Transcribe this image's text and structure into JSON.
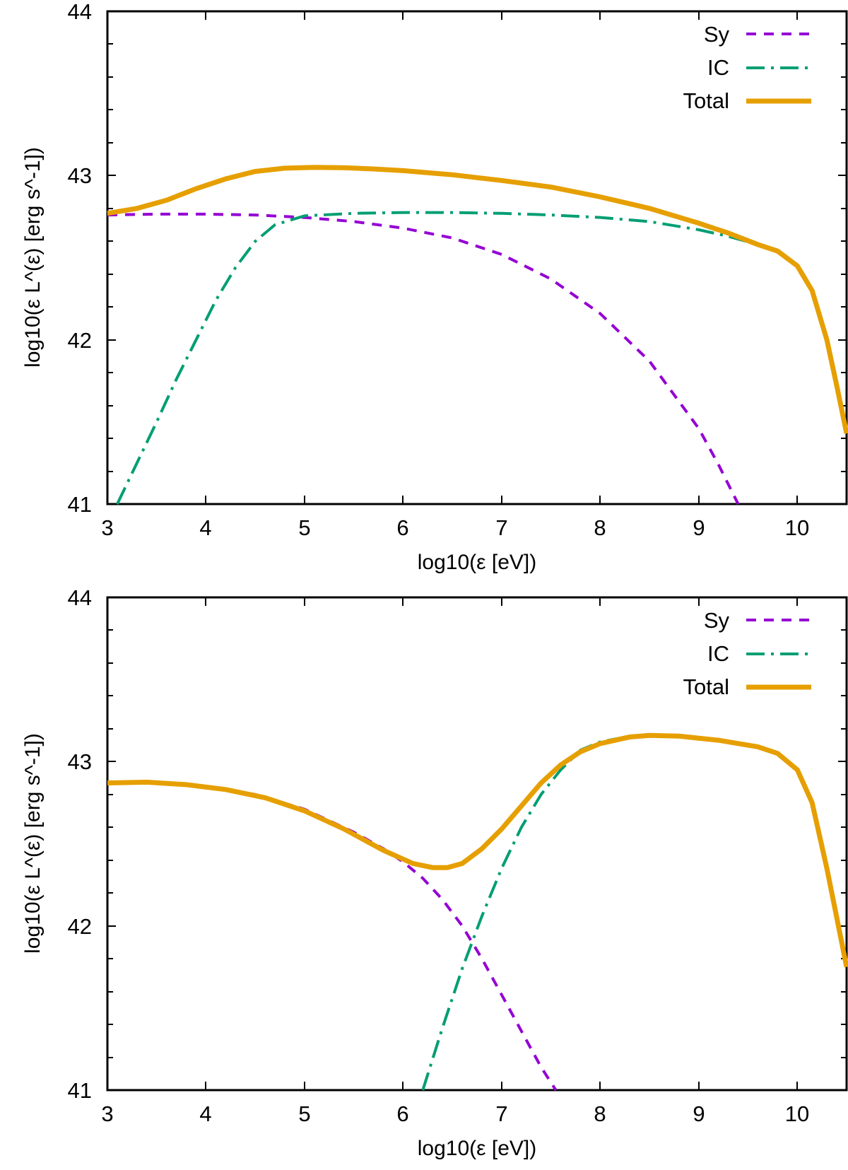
{
  "chart_data": [
    {
      "type": "line",
      "panel": "top",
      "title": "",
      "xlabel": "log10(ε [eV])",
      "ylabel": "log10(ε L^(ε) [erg s^-1])",
      "xlim": [
        3,
        10.5
      ],
      "ylim": [
        41,
        44
      ],
      "xticks": [
        3,
        4,
        5,
        6,
        7,
        8,
        9,
        10
      ],
      "yticks": [
        41,
        42,
        43,
        44
      ],
      "grid": false,
      "legend_position": "top-right",
      "series": [
        {
          "name": "Sy",
          "style": "dashed",
          "color": "#9400d3",
          "x": [
            3.0,
            3.5,
            4.0,
            4.5,
            5.0,
            5.5,
            6.0,
            6.5,
            7.0,
            7.5,
            8.0,
            8.5,
            9.0,
            9.2,
            9.4
          ],
          "y": [
            42.76,
            42.765,
            42.765,
            42.76,
            42.745,
            42.72,
            42.68,
            42.62,
            42.52,
            42.37,
            42.16,
            41.87,
            41.46,
            41.24,
            41.0
          ]
        },
        {
          "name": "IC",
          "style": "dash-dot",
          "color": "#009e73",
          "x": [
            3.1,
            3.3,
            3.5,
            3.7,
            3.9,
            4.1,
            4.3,
            4.5,
            4.7,
            5.0,
            5.5,
            6.0,
            6.5,
            7.0,
            7.5,
            8.0,
            8.5,
            9.0,
            9.3,
            9.6,
            9.8,
            10.0,
            10.15,
            10.3,
            10.4,
            10.5
          ],
          "y": [
            41.0,
            41.25,
            41.5,
            41.76,
            42.0,
            42.24,
            42.44,
            42.6,
            42.7,
            42.755,
            42.77,
            42.775,
            42.775,
            42.77,
            42.76,
            42.745,
            42.72,
            42.67,
            42.63,
            42.58,
            42.54,
            42.45,
            42.3,
            42.0,
            41.72,
            41.43
          ]
        },
        {
          "name": "Total",
          "style": "solid",
          "color": "#e69f00",
          "x": [
            3.0,
            3.3,
            3.6,
            3.9,
            4.2,
            4.5,
            4.8,
            5.1,
            5.4,
            5.7,
            6.0,
            6.5,
            7.0,
            7.5,
            8.0,
            8.5,
            9.0,
            9.3,
            9.6,
            9.8,
            10.0,
            10.15,
            10.3,
            10.4,
            10.5
          ],
          "y": [
            42.77,
            42.8,
            42.85,
            42.92,
            42.98,
            43.025,
            43.045,
            43.05,
            43.048,
            43.04,
            43.03,
            43.005,
            42.97,
            42.93,
            42.87,
            42.8,
            42.71,
            42.65,
            42.58,
            42.54,
            42.45,
            42.3,
            42.0,
            41.72,
            41.43
          ]
        }
      ]
    },
    {
      "type": "line",
      "panel": "bottom",
      "title": "",
      "xlabel": "log10(ε [eV])",
      "ylabel": "log10(ε L^(ε) [erg s^-1])",
      "xlim": [
        3,
        10.5
      ],
      "ylim": [
        41,
        44
      ],
      "xticks": [
        3,
        4,
        5,
        6,
        7,
        8,
        9,
        10
      ],
      "yticks": [
        41,
        42,
        43,
        44
      ],
      "grid": false,
      "legend_position": "top-right",
      "series": [
        {
          "name": "Sy",
          "style": "dashed",
          "color": "#9400d3",
          "x": [
            3.0,
            3.5,
            4.0,
            4.5,
            5.0,
            5.5,
            5.8,
            6.0,
            6.2,
            6.4,
            6.6,
            6.8,
            7.0,
            7.2,
            7.4,
            7.55
          ],
          "y": [
            42.87,
            42.875,
            42.85,
            42.8,
            42.71,
            42.57,
            42.47,
            42.39,
            42.29,
            42.16,
            42.0,
            41.8,
            41.58,
            41.36,
            41.14,
            41.0
          ]
        },
        {
          "name": "IC",
          "style": "dash-dot",
          "color": "#009e73",
          "x": [
            6.2,
            6.4,
            6.6,
            6.8,
            7.0,
            7.2,
            7.4,
            7.6,
            7.8,
            8.0,
            8.3,
            8.5,
            8.8,
            9.2,
            9.6,
            9.8,
            10.0,
            10.15,
            10.3,
            10.4,
            10.5
          ],
          "y": [
            41.0,
            41.38,
            41.74,
            42.06,
            42.35,
            42.6,
            42.8,
            42.95,
            43.07,
            43.12,
            43.155,
            43.16,
            43.155,
            43.13,
            43.09,
            43.05,
            42.95,
            42.75,
            42.35,
            42.05,
            41.75
          ]
        },
        {
          "name": "Total",
          "style": "solid",
          "color": "#e69f00",
          "x": [
            3.0,
            3.4,
            3.8,
            4.2,
            4.6,
            5.0,
            5.4,
            5.8,
            6.1,
            6.3,
            6.45,
            6.6,
            6.8,
            7.0,
            7.2,
            7.4,
            7.6,
            7.8,
            8.0,
            8.3,
            8.5,
            8.8,
            9.2,
            9.6,
            9.8,
            10.0,
            10.15,
            10.3,
            10.4,
            10.5
          ],
          "y": [
            42.87,
            42.875,
            42.86,
            42.83,
            42.78,
            42.7,
            42.59,
            42.46,
            42.38,
            42.355,
            42.355,
            42.38,
            42.47,
            42.59,
            42.73,
            42.87,
            42.98,
            43.06,
            43.11,
            43.15,
            43.16,
            43.155,
            43.13,
            43.09,
            43.05,
            42.95,
            42.75,
            42.35,
            42.05,
            41.75
          ]
        }
      ]
    }
  ]
}
